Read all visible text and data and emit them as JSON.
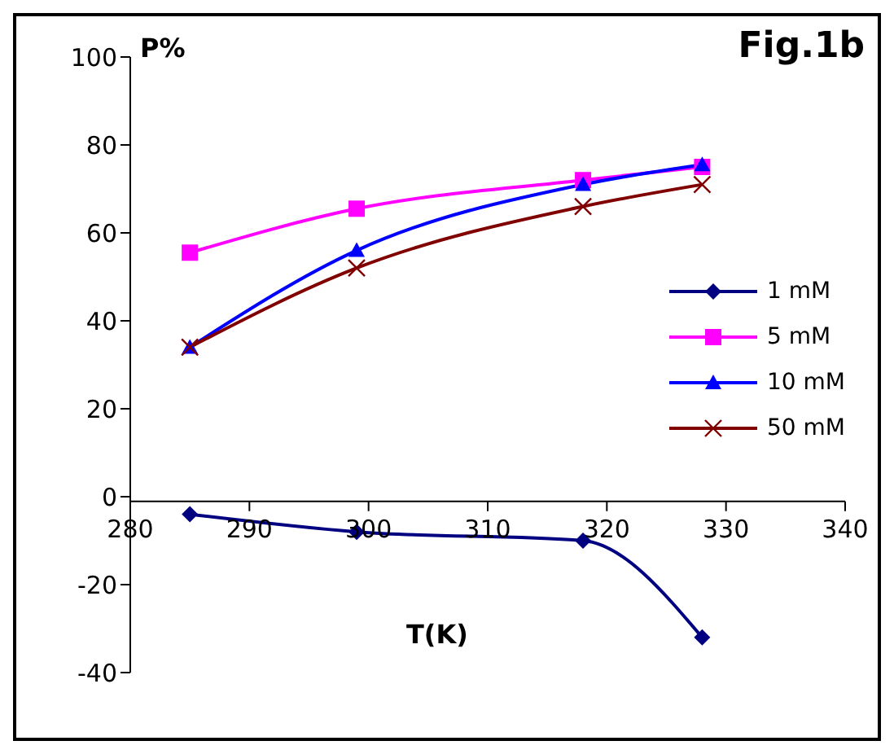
{
  "chart_data": {
    "type": "line",
    "title": "Fig.1b",
    "xlabel": "T(K)",
    "ylabel": "P%",
    "x": [
      285,
      299,
      318,
      328
    ],
    "series": [
      {
        "name": "1 mM",
        "color": "#000080",
        "marker": "diamond",
        "values": [
          -4,
          -8,
          -10,
          -32
        ]
      },
      {
        "name": "5 mM",
        "color": "#ff00ff",
        "marker": "square",
        "values": [
          55.5,
          65.5,
          72,
          75
        ]
      },
      {
        "name": "10 mM",
        "color": "#0000ff",
        "marker": "triangle",
        "values": [
          34,
          56,
          71,
          75.5
        ]
      },
      {
        "name": "50 mM",
        "color": "#800000",
        "marker": "cross",
        "values": [
          34,
          52,
          66,
          71
        ]
      }
    ],
    "xlim": [
      280,
      340
    ],
    "xticks": [
      280,
      290,
      300,
      310,
      320,
      330,
      340
    ],
    "ylim": [
      -40,
      100
    ],
    "yticks": [
      -40,
      -20,
      0,
      20,
      40,
      60,
      80,
      100
    ],
    "grid": false,
    "legend": "right",
    "line_style": "solid"
  }
}
